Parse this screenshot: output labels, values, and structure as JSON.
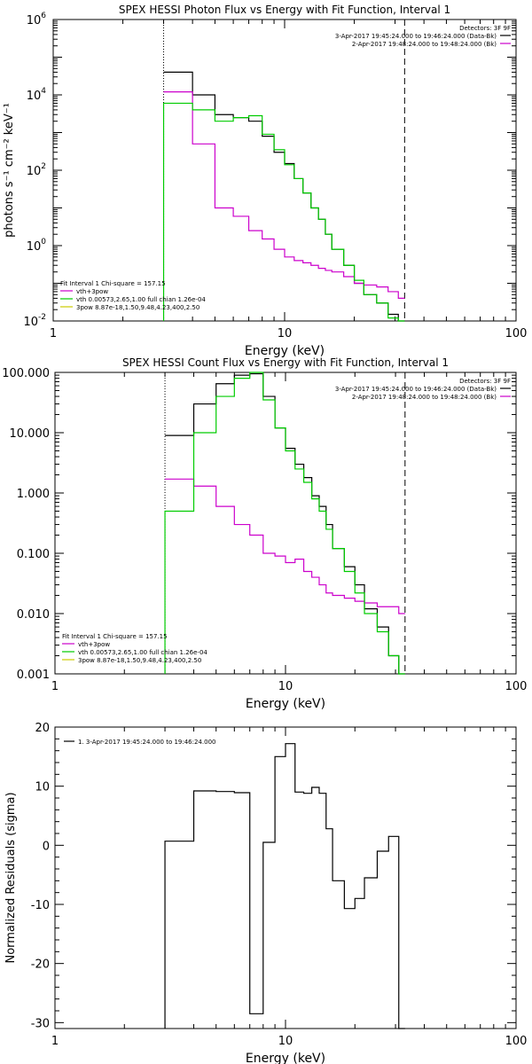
{
  "chart_data": [
    {
      "type": "line",
      "title": "SPEX HESSI Photon Flux vs Energy with Fit Function, Interval 1",
      "xlabel": "Energy (keV)",
      "ylabel": "photons s⁻¹ cm⁻² keV⁻¹",
      "xscale": "log",
      "yscale": "log",
      "xlim": [
        1,
        100
      ],
      "ylim": [
        0.01,
        1000000
      ],
      "x_ticks": [
        "1",
        "10",
        "100"
      ],
      "y_ticks": [
        {
          "base": "10",
          "exp": "-2"
        },
        {
          "base": "10",
          "exp": "0"
        },
        {
          "base": "10",
          "exp": "2"
        },
        {
          "base": "10",
          "exp": "4"
        },
        {
          "base": "10",
          "exp": "6"
        }
      ],
      "fit_range_keV": [
        3.0,
        33.0
      ],
      "edges": [
        3.0,
        4.0,
        5.0,
        6.0,
        7.0,
        8.0,
        9.0,
        10.0,
        11.0,
        12.0,
        13.0,
        14.0,
        15.0,
        16.0,
        18.0,
        20.0,
        22.0,
        25.0,
        28.0,
        31.0,
        33.0
      ],
      "legend_top": {
        "header": "Detectors: 3F 9F",
        "entries": [
          {
            "text": "3-Apr-2017 19:45:24.000 to 19:46:24.000 (Data-Bk)",
            "color": "#000000"
          },
          {
            "text": "2-Apr-2017 19:48:24.000 to 19:48:24.000 (Bk)",
            "color": "#cc00cc"
          }
        ]
      },
      "legend_bottom": {
        "header": "Fit Interval  1    Chi-square = 157.15",
        "entries": [
          {
            "text": "vth+3pow",
            "color": "#cc00cc"
          },
          {
            "text": "vth 0.00573,2.65,1.00  full chian 1.26e-04",
            "color": "#00cc00"
          },
          {
            "text": "3pow 8.87e-18,1.50,9.48,4.23,400,2.50",
            "color": "#cccc00"
          }
        ]
      },
      "series": [
        {
          "name": "3-Apr-2017 19:45:24.000 to 19:46:24.000 (Data-Bk)",
          "color": "#000000",
          "values": [
            40000,
            10000,
            3000,
            2500,
            2000,
            800,
            300,
            150,
            60,
            25,
            10,
            5,
            2,
            0.8,
            0.3,
            0.1,
            0.05,
            0.03,
            0.015,
            0.01
          ]
        },
        {
          "name": "2-Apr-2017 19:48:24.000 to 19:48:24.000 (Bk)",
          "color": "#cc00cc",
          "values": [
            12000,
            500,
            10,
            6,
            2.5,
            1.5,
            0.8,
            0.5,
            0.4,
            0.35,
            0.3,
            0.25,
            0.22,
            0.2,
            0.15,
            0.1,
            0.09,
            0.08,
            0.06,
            0.04
          ]
        },
        {
          "name": "vth+3pow",
          "color": "#00cc00",
          "values": [
            6000,
            4000,
            2000,
            2500,
            2800,
            900,
            350,
            140,
            60,
            25,
            10,
            5,
            2,
            0.8,
            0.3,
            0.12,
            0.05,
            0.03,
            0.012,
            0.008
          ]
        }
      ],
      "drop_to_floor": [
        "#00cc00"
      ]
    },
    {
      "type": "line",
      "title": "SPEX HESSI Count Flux vs Energy with Fit Function, Interval 1",
      "xlabel": "Energy (keV)",
      "ylabel": "",
      "xscale": "log",
      "yscale": "log",
      "xlim": [
        1,
        100
      ],
      "ylim": [
        0.001,
        100
      ],
      "x_ticks": [
        "1",
        "10",
        "100"
      ],
      "y_ticks": [
        "0.001",
        "0.010",
        "0.100",
        "1.000",
        "10.000",
        "100.000"
      ],
      "fit_range_keV": [
        3.0,
        33.0
      ],
      "edges": [
        3.0,
        4.0,
        5.0,
        6.0,
        7.0,
        8.0,
        9.0,
        10.0,
        11.0,
        12.0,
        13.0,
        14.0,
        15.0,
        16.0,
        18.0,
        20.0,
        22.0,
        25.0,
        28.0,
        31.0,
        33.0
      ],
      "legend_top": {
        "header": "Detectors: 3F 9F",
        "entries": [
          {
            "text": "3-Apr-2017 19:45:24.000 to 19:46:24.000 (Data-Bk)",
            "color": "#000000"
          },
          {
            "text": "2-Apr-2017 19:48:24.000 to 19:48:24.000 (Bk)",
            "color": "#cc00cc"
          }
        ]
      },
      "legend_bottom": {
        "header": "Fit Interval  1    Chi-square = 157.15",
        "entries": [
          {
            "text": "vth+3pow",
            "color": "#cc00cc"
          },
          {
            "text": "vth 0.00573,2.65,1.00  full chian 1.26e-04",
            "color": "#00cc00"
          },
          {
            "text": "3pow 8.87e-18,1.50,9.48,4.23,400,2.50",
            "color": "#cccc00"
          }
        ]
      },
      "series": [
        {
          "name": "3-Apr-2017 19:45:24.000 to 19:46:24.000 (Data-Bk)",
          "color": "#000000",
          "values": [
            9,
            30,
            65,
            90,
            95,
            40,
            12,
            5.5,
            3,
            1.8,
            0.9,
            0.6,
            0.3,
            0.12,
            0.06,
            0.03,
            0.012,
            0.006,
            0.002,
            0.001
          ]
        },
        {
          "name": "2-Apr-2017 19:48:24.000 to 19:48:24.000 (Bk)",
          "color": "#cc00cc",
          "values": [
            1.7,
            1.3,
            0.6,
            0.3,
            0.2,
            0.1,
            0.09,
            0.07,
            0.08,
            0.05,
            0.04,
            0.03,
            0.022,
            0.02,
            0.018,
            0.016,
            0.015,
            0.013,
            0.013,
            0.01
          ]
        },
        {
          "name": "vth+3pow",
          "color": "#00cc00",
          "values": [
            0.5,
            10,
            40,
            80,
            100,
            35,
            12,
            5,
            2.5,
            1.5,
            0.8,
            0.5,
            0.25,
            0.12,
            0.05,
            0.022,
            0.01,
            0.005,
            0.002,
            0.001
          ]
        }
      ],
      "drop_to_floor": [
        "#00cc00"
      ]
    },
    {
      "type": "line",
      "title": "",
      "xlabel": "Energy (keV)",
      "ylabel": "Normalized Residuals (sigma)",
      "xscale": "log",
      "yscale": "linear",
      "xlim": [
        1,
        100
      ],
      "ylim": [
        -31,
        20
      ],
      "x_ticks": [
        "1",
        "10",
        "100"
      ],
      "y_ticks": [
        "-30",
        "-20",
        "-10",
        "0",
        "10",
        "20"
      ],
      "edges": [
        3.0,
        4.0,
        5.0,
        6.0,
        7.0,
        8.0,
        9.0,
        10.0,
        11.0,
        12.0,
        13.0,
        14.0,
        15.0,
        16.0,
        18.0,
        20.0,
        22.0,
        25.0,
        28.0,
        31.0,
        33.0
      ],
      "legend_top": {
        "header": "",
        "entries": [
          {
            "text": "1.  3-Apr-2017 19:45:24.000 to 19:46:24.000",
            "color": "#000000"
          }
        ]
      },
      "series": [
        {
          "name": "1.  3-Apr-2017 19:45:24.000 to 19:46:24.000",
          "color": "#000000",
          "values": [
            0.7,
            9.2,
            9.1,
            8.9,
            -28.5,
            0.5,
            15,
            17.2,
            9,
            8.8,
            9.8,
            8.8,
            2.8,
            -6,
            -10.7,
            -9,
            -5.5,
            -1,
            1.5,
            -31
          ]
        }
      ],
      "drop_to_floor": [
        "#000000"
      ]
    }
  ]
}
